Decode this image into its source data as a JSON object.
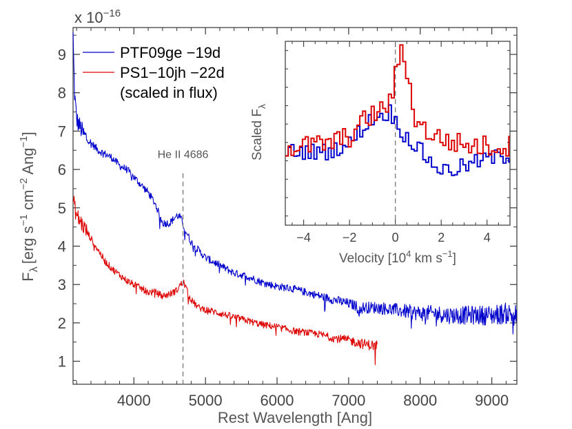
{
  "chart_data": [
    {
      "type": "line",
      "xlabel": "Rest Wavelength [Ang]",
      "ylabel_main": "F",
      "ylabel_sub": "λ",
      "ylabel_units": "[erg s",
      "ylabel_units_mid": " cm",
      "ylabel_units_end": " Ang",
      "ylabel_exp1": "−1",
      "ylabel_exp2": "−2",
      "ylabel_exp3": "−1",
      "ylabel_close": "]",
      "scale_prefix": "x 10",
      "scale_exp": "−16",
      "xlim": [
        3150,
        9350
      ],
      "ylim": [
        0.4,
        9.7
      ],
      "xticks": [
        4000,
        5000,
        6000,
        7000,
        8000,
        9000
      ],
      "yticks": [
        1,
        2,
        3,
        4,
        5,
        6,
        7,
        8,
        9
      ],
      "legend_position": "top-left",
      "annotation": {
        "text": "He II 4686",
        "x": 4686
      },
      "legend_note": "(scaled in flux)",
      "series": [
        {
          "name": "PTF09ge −19d",
          "color": "#0000cc",
          "noise": 0.1,
          "x": [
            3150,
            3170,
            3200,
            3250,
            3300,
            3400,
            3500,
            3600,
            3700,
            3800,
            3900,
            4000,
            4100,
            4200,
            4300,
            4400,
            4500,
            4600,
            4650,
            4700,
            4750,
            4800,
            4900,
            5000,
            5200,
            5400,
            5600,
            5800,
            6000,
            6200,
            6400,
            6600,
            6800,
            7000,
            7100,
            7150,
            7200,
            7400,
            7600,
            7800,
            8000,
            8200,
            8400,
            8600,
            8800,
            9000,
            9200,
            9350
          ],
          "y": [
            9.5,
            8.0,
            7.3,
            7.1,
            6.9,
            6.7,
            6.5,
            6.4,
            6.3,
            6.1,
            6.0,
            5.8,
            5.6,
            5.4,
            5.1,
            4.6,
            4.6,
            4.8,
            4.75,
            4.5,
            4.3,
            4.1,
            3.9,
            3.7,
            3.5,
            3.3,
            3.2,
            3.05,
            2.95,
            2.9,
            2.8,
            2.7,
            2.6,
            2.5,
            2.45,
            2.3,
            2.4,
            2.4,
            2.35,
            2.3,
            2.25,
            2.25,
            2.2,
            2.2,
            2.2,
            2.2,
            2.25,
            2.2
          ]
        },
        {
          "name": "PS1−10jh −22d",
          "color": "#dd0000",
          "noise": 0.09,
          "x": [
            3150,
            3200,
            3300,
            3400,
            3500,
            3600,
            3700,
            3800,
            3900,
            4000,
            4100,
            4200,
            4300,
            4400,
            4500,
            4600,
            4650,
            4700,
            4750,
            4800,
            4900,
            5000,
            5200,
            5400,
            5600,
            5800,
            6000,
            6200,
            6400,
            6600,
            6800,
            7000,
            7200,
            7400
          ],
          "y": [
            5.2,
            4.8,
            4.5,
            4.2,
            3.9,
            3.6,
            3.4,
            3.25,
            3.1,
            3.0,
            2.9,
            2.8,
            2.8,
            2.7,
            2.75,
            2.85,
            3.0,
            3.05,
            2.8,
            2.6,
            2.4,
            2.35,
            2.25,
            2.15,
            2.05,
            1.95,
            1.9,
            1.8,
            1.75,
            1.7,
            1.6,
            1.55,
            1.45,
            1.4
          ]
        }
      ]
    },
    {
      "type": "line",
      "title": "inset",
      "xlabel_text": "Velocity [10",
      "xlabel_exp": "4",
      "xlabel_mid": " km s",
      "xlabel_exp2": "−1",
      "xlabel_close": "]",
      "ylabel_main": "Scaled F",
      "ylabel_sub": "λ",
      "xlim": [
        -4.8,
        5.0
      ],
      "ylim": [
        0.0,
        1.0
      ],
      "xticks": [
        -4,
        -2,
        0,
        2,
        4
      ],
      "xtick_labels": [
        "−4",
        "−2",
        "0",
        "2",
        "4"
      ],
      "series": [
        {
          "name": "PTF09ge −19d",
          "color": "#0000cc",
          "noise": 0.045,
          "x": [
            -4.8,
            -4.0,
            -3.0,
            -2.0,
            -1.5,
            -1.0,
            -0.5,
            -0.2,
            0.0,
            0.5,
            1.0,
            1.5,
            2.0,
            2.5,
            3.0,
            3.5,
            4.0,
            4.5,
            5.0
          ],
          "y": [
            0.4,
            0.4,
            0.4,
            0.44,
            0.52,
            0.58,
            0.6,
            0.62,
            0.56,
            0.48,
            0.42,
            0.35,
            0.3,
            0.3,
            0.32,
            0.34,
            0.36,
            0.37,
            0.38
          ]
        },
        {
          "name": "PS1−10jh −22d",
          "color": "#dd0000",
          "noise": 0.06,
          "x": [
            -4.8,
            -4.0,
            -3.0,
            -2.0,
            -1.5,
            -1.0,
            -0.5,
            -0.2,
            0.0,
            0.2,
            0.3,
            0.5,
            0.8,
            1.0,
            1.5,
            2.0,
            2.5,
            3.0,
            3.5,
            4.0,
            4.5,
            5.0
          ],
          "y": [
            0.42,
            0.43,
            0.44,
            0.48,
            0.55,
            0.6,
            0.63,
            0.68,
            0.8,
            0.93,
            0.96,
            0.85,
            0.62,
            0.55,
            0.5,
            0.47,
            0.45,
            0.44,
            0.43,
            0.43,
            0.43,
            0.43
          ]
        }
      ]
    }
  ]
}
